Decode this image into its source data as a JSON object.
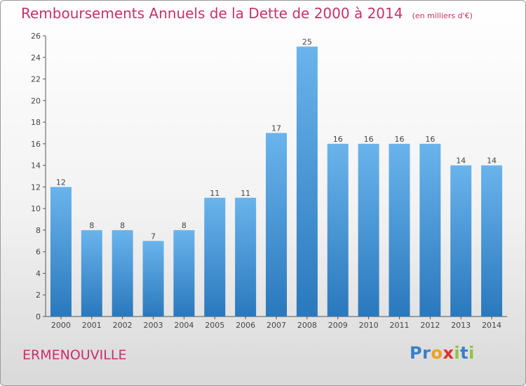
{
  "title": "Remboursements Annuels de la Dette de 2000 à 2014",
  "unit": "(en milliers d'€)",
  "commune": "ERMENOUVILLE",
  "logo": {
    "letters": [
      "P",
      "r",
      "o",
      "x",
      "i",
      "t",
      "i"
    ],
    "colors": [
      "#3a7fc9",
      "#3a7fc9",
      "#f0a020",
      "#e03030",
      "#8dc63f",
      "#3a7fc9",
      "#8dc63f"
    ]
  },
  "colors": {
    "title": "#c8306b",
    "bar_top": "#6ab4ec",
    "bar_bottom": "#2a78bd",
    "axis": "#555555",
    "grid": "#d8d8d8"
  },
  "chart_data": {
    "type": "bar",
    "title": "Remboursements Annuels de la Dette de 2000 à 2014",
    "categories": [
      "2000",
      "2001",
      "2002",
      "2003",
      "2004",
      "2005",
      "2006",
      "2007",
      "2008",
      "2009",
      "2010",
      "2011",
      "2012",
      "2013",
      "2014"
    ],
    "values": [
      12,
      8,
      8,
      7,
      8,
      11,
      11,
      17,
      25,
      16,
      16,
      16,
      16,
      14,
      14
    ],
    "data_labels": [
      "12",
      "8",
      "8",
      "7",
      "8",
      "11",
      "11",
      "17",
      "25",
      "16",
      "16",
      "16",
      "16",
      "14",
      "14"
    ],
    "ylim": [
      0,
      26
    ],
    "yticks": [
      0,
      2,
      4,
      6,
      8,
      10,
      12,
      14,
      16,
      18,
      20,
      22,
      24,
      26
    ],
    "xlabel": "",
    "ylabel": "",
    "grid": false,
    "legend": "none"
  }
}
